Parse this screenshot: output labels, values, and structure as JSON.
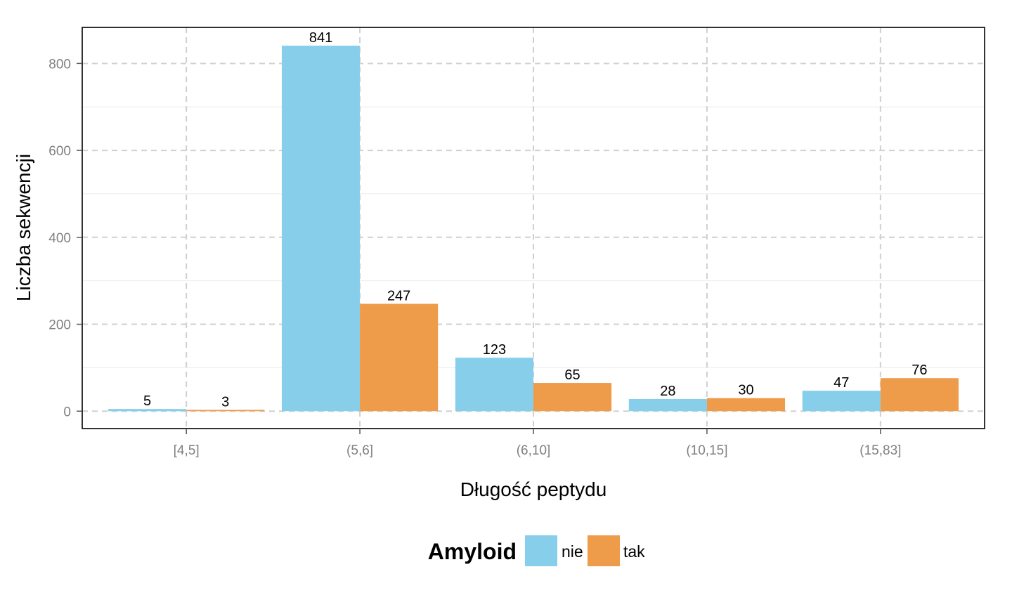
{
  "chart_data": {
    "type": "bar",
    "categories": [
      "[4,5]",
      "(5,6]",
      "(6,10]",
      "(10,15]",
      "(15,83]"
    ],
    "series": [
      {
        "name": "nie",
        "color": "#87CEEB",
        "values": [
          5,
          841,
          123,
          28,
          47
        ]
      },
      {
        "name": "tak",
        "color": "#EE9B4A",
        "values": [
          3,
          247,
          65,
          30,
          76
        ]
      }
    ],
    "xlabel": "Długość peptydu",
    "ylabel": "Liczba sekwencji",
    "yticks": [
      "0",
      "200",
      "400",
      "600",
      "800"
    ],
    "ylim": [
      -40,
      883
    ],
    "grid": true,
    "legend": {
      "title": "Amyloid",
      "position": "bottom"
    }
  }
}
